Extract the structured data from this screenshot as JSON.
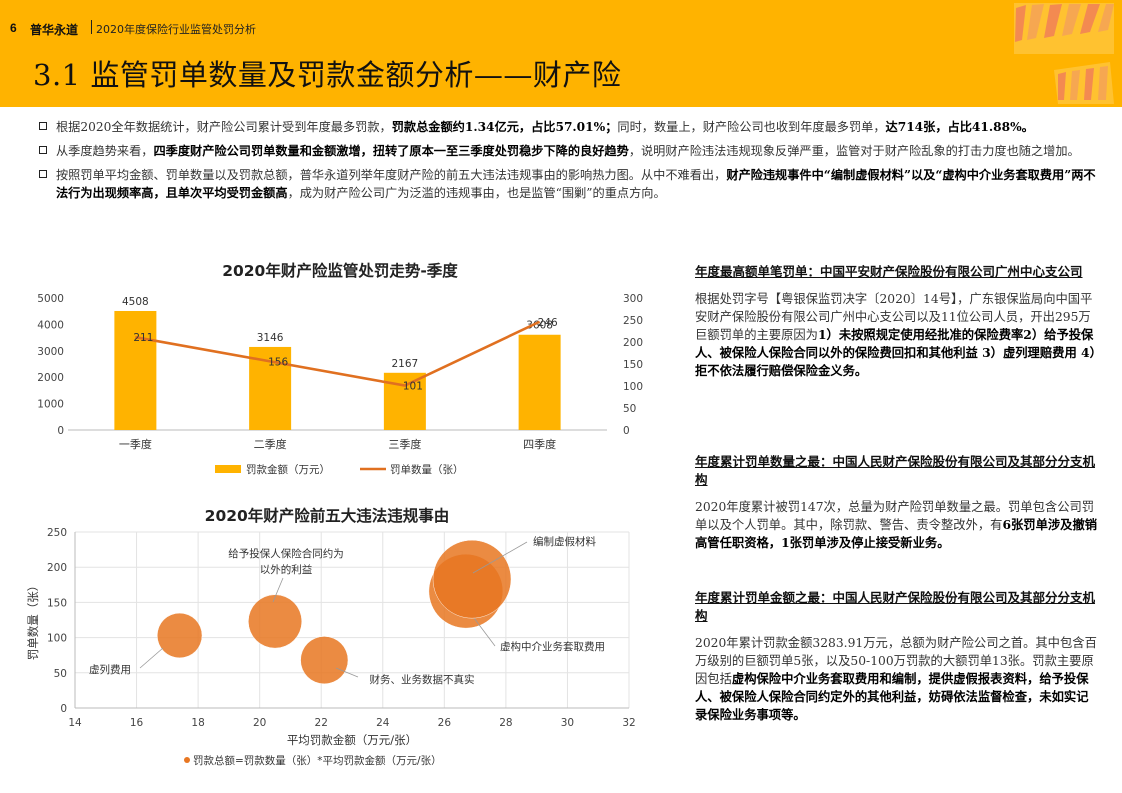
{
  "header": {
    "page_number": "6",
    "brand": "普华永道",
    "report_title": "2020年度保险行业监管处罚分析",
    "section_title": "3.1 监管罚单数量及罚款金额分析——财产险",
    "colors": {
      "banner": "#FFB300",
      "bar": "#FFB300",
      "line": "#E07020",
      "bubble": "#E87722"
    }
  },
  "bullets": [
    {
      "pre": "根据2020全年数据统计，财产险公司累计受到年度最多罚款，",
      "bold1": "罚款总金额约1.34亿元，占比57.01%；",
      "mid": "同时，数量上，财产险公司也收到年度最多罚单，",
      "bold2": "达714张，占比41.88%。",
      "post": ""
    },
    {
      "pre": "从季度趋势来看，",
      "bold1": "四季度财产险公司罚单数量和金额激增，扭转了原本一至三季度处罚稳步下降的良好趋势",
      "mid": "，说明财产险违法违规现象反弹严重，监管对于财产险乱象的打击力度也随之增加。",
      "bold2": "",
      "post": ""
    },
    {
      "pre": "按照罚单平均金额、罚单数量以及罚款总额，普华永道列举年度财产险的前五大违法违规事由的影响热力图。从中不难看出，",
      "bold1": "财产险违规事件中“编制虚假材料”以及“虚构中介业务套取费用”两不法行为出现频率高，且单次平均受罚金额高",
      "mid": "，成为财产险公司广为泛滥的违规事由，也是监管“围剿”的重点方向。",
      "bold2": "",
      "post": ""
    }
  ],
  "chart_data": [
    {
      "type": "bar",
      "title": "2020年财产险监管处罚走势-季度",
      "categories": [
        "一季度",
        "二季度",
        "三季度",
        "四季度"
      ],
      "series": [
        {
          "name": "罚款金额（万元）",
          "type": "bar",
          "axis": "left",
          "values": [
            4508,
            3146,
            2167,
            3608
          ],
          "labels": [
            "4508",
            "3146",
            "2167",
            "3608"
          ]
        },
        {
          "name": "罚单数量（张）",
          "type": "line",
          "axis": "right",
          "values": [
            211,
            156,
            101,
            246
          ],
          "labels": [
            "211",
            "156",
            "101",
            "246"
          ]
        }
      ],
      "y_left_ticks": [
        "0",
        "1000",
        "2000",
        "3000",
        "4000",
        "5000"
      ],
      "y_right_ticks": [
        "0",
        "50",
        "100",
        "150",
        "200",
        "250",
        "300"
      ],
      "ylim_left": [
        0,
        5000
      ],
      "ylim_right": [
        0,
        300
      ],
      "legend_position": "bottom"
    },
    {
      "type": "scatter",
      "title": "2020年财产险前五大违法违规事由",
      "xlabel": "平均罚款金额（万元/张）",
      "ylabel": "罚单数量（张）",
      "xlim": [
        14,
        32
      ],
      "ylim": [
        0,
        250
      ],
      "x_ticks": [
        "14",
        "16",
        "18",
        "20",
        "22",
        "24",
        "26",
        "28",
        "30",
        "32"
      ],
      "y_ticks": [
        "0",
        "50",
        "100",
        "150",
        "200",
        "250"
      ],
      "points": [
        {
          "label": "虚列费用",
          "x": 17.4,
          "y": 103,
          "size": 0.33
        },
        {
          "label": "给予投保人保险合同约为以外的利益",
          "x": 20.5,
          "y": 123,
          "size": 0.47
        },
        {
          "label": "财务、业务数据不真实",
          "x": 22.1,
          "y": 68,
          "size": 0.37
        },
        {
          "label": "虚构中介业务套取费用",
          "x": 26.7,
          "y": 166,
          "size": 0.9
        },
        {
          "label": "编制虚假材料",
          "x": 26.9,
          "y": 183,
          "size": 1.0
        }
      ],
      "legend": "罚款总额=罚款数量（张）*平均罚款金额（万元/张）"
    }
  ],
  "cases": [
    {
      "title": "年度最高额单笔罚单：中国平安财产保险股份有限公司广州中心支公司",
      "text_plain": "根据处罚字号【粤银保监罚决字〔2020〕14号】，广东银保监局向中国平安财产保险股份有限公司广州中心支公司以及11位公司人员，开出295万巨额罚单的主要原因为",
      "text_bold": "1）未按照规定使用经批准的保险费率2）给予投保人、被保险人保险合同以外的保险费回扣和其他利益 3）虚列理赔费用 4）拒不依法履行赔偿保险金义务。",
      "text_plain2": "",
      "text_bold2": ""
    },
    {
      "title": "年度累计罚单数量之最：中国人民财产保险股份有限公司及其部分分支机构",
      "text_plain": "2020年度累计被罚147次，总量为财产险罚单数量之最。罚单包含公司罚单以及个人罚单。其中，除罚款、警告、责令整改外，有",
      "text_bold": "6张罚单涉及撤销高管任职资格，1张罚单涉及停止接受新业务。",
      "text_plain2": "",
      "text_bold2": ""
    },
    {
      "title": "年度累计罚单金额之最：中国人民财产保险股份有限公司及其部分分支机构",
      "text_plain": "2020年累计罚款金额3283.91万元，总额为财产险公司之首。其中包含百万级别的巨额罚单5张，以及50-100万罚款的大额罚单13张。罚款主要原因包括",
      "text_bold": "虚构保险中介业务套取费用和编制，提供虚假报表资料，给予投保人、被保险人保险合同约定外的其他利益，妨碍依法监督检查，未如实记录保险业务事项等。",
      "text_plain2": "",
      "text_bold2": ""
    }
  ]
}
